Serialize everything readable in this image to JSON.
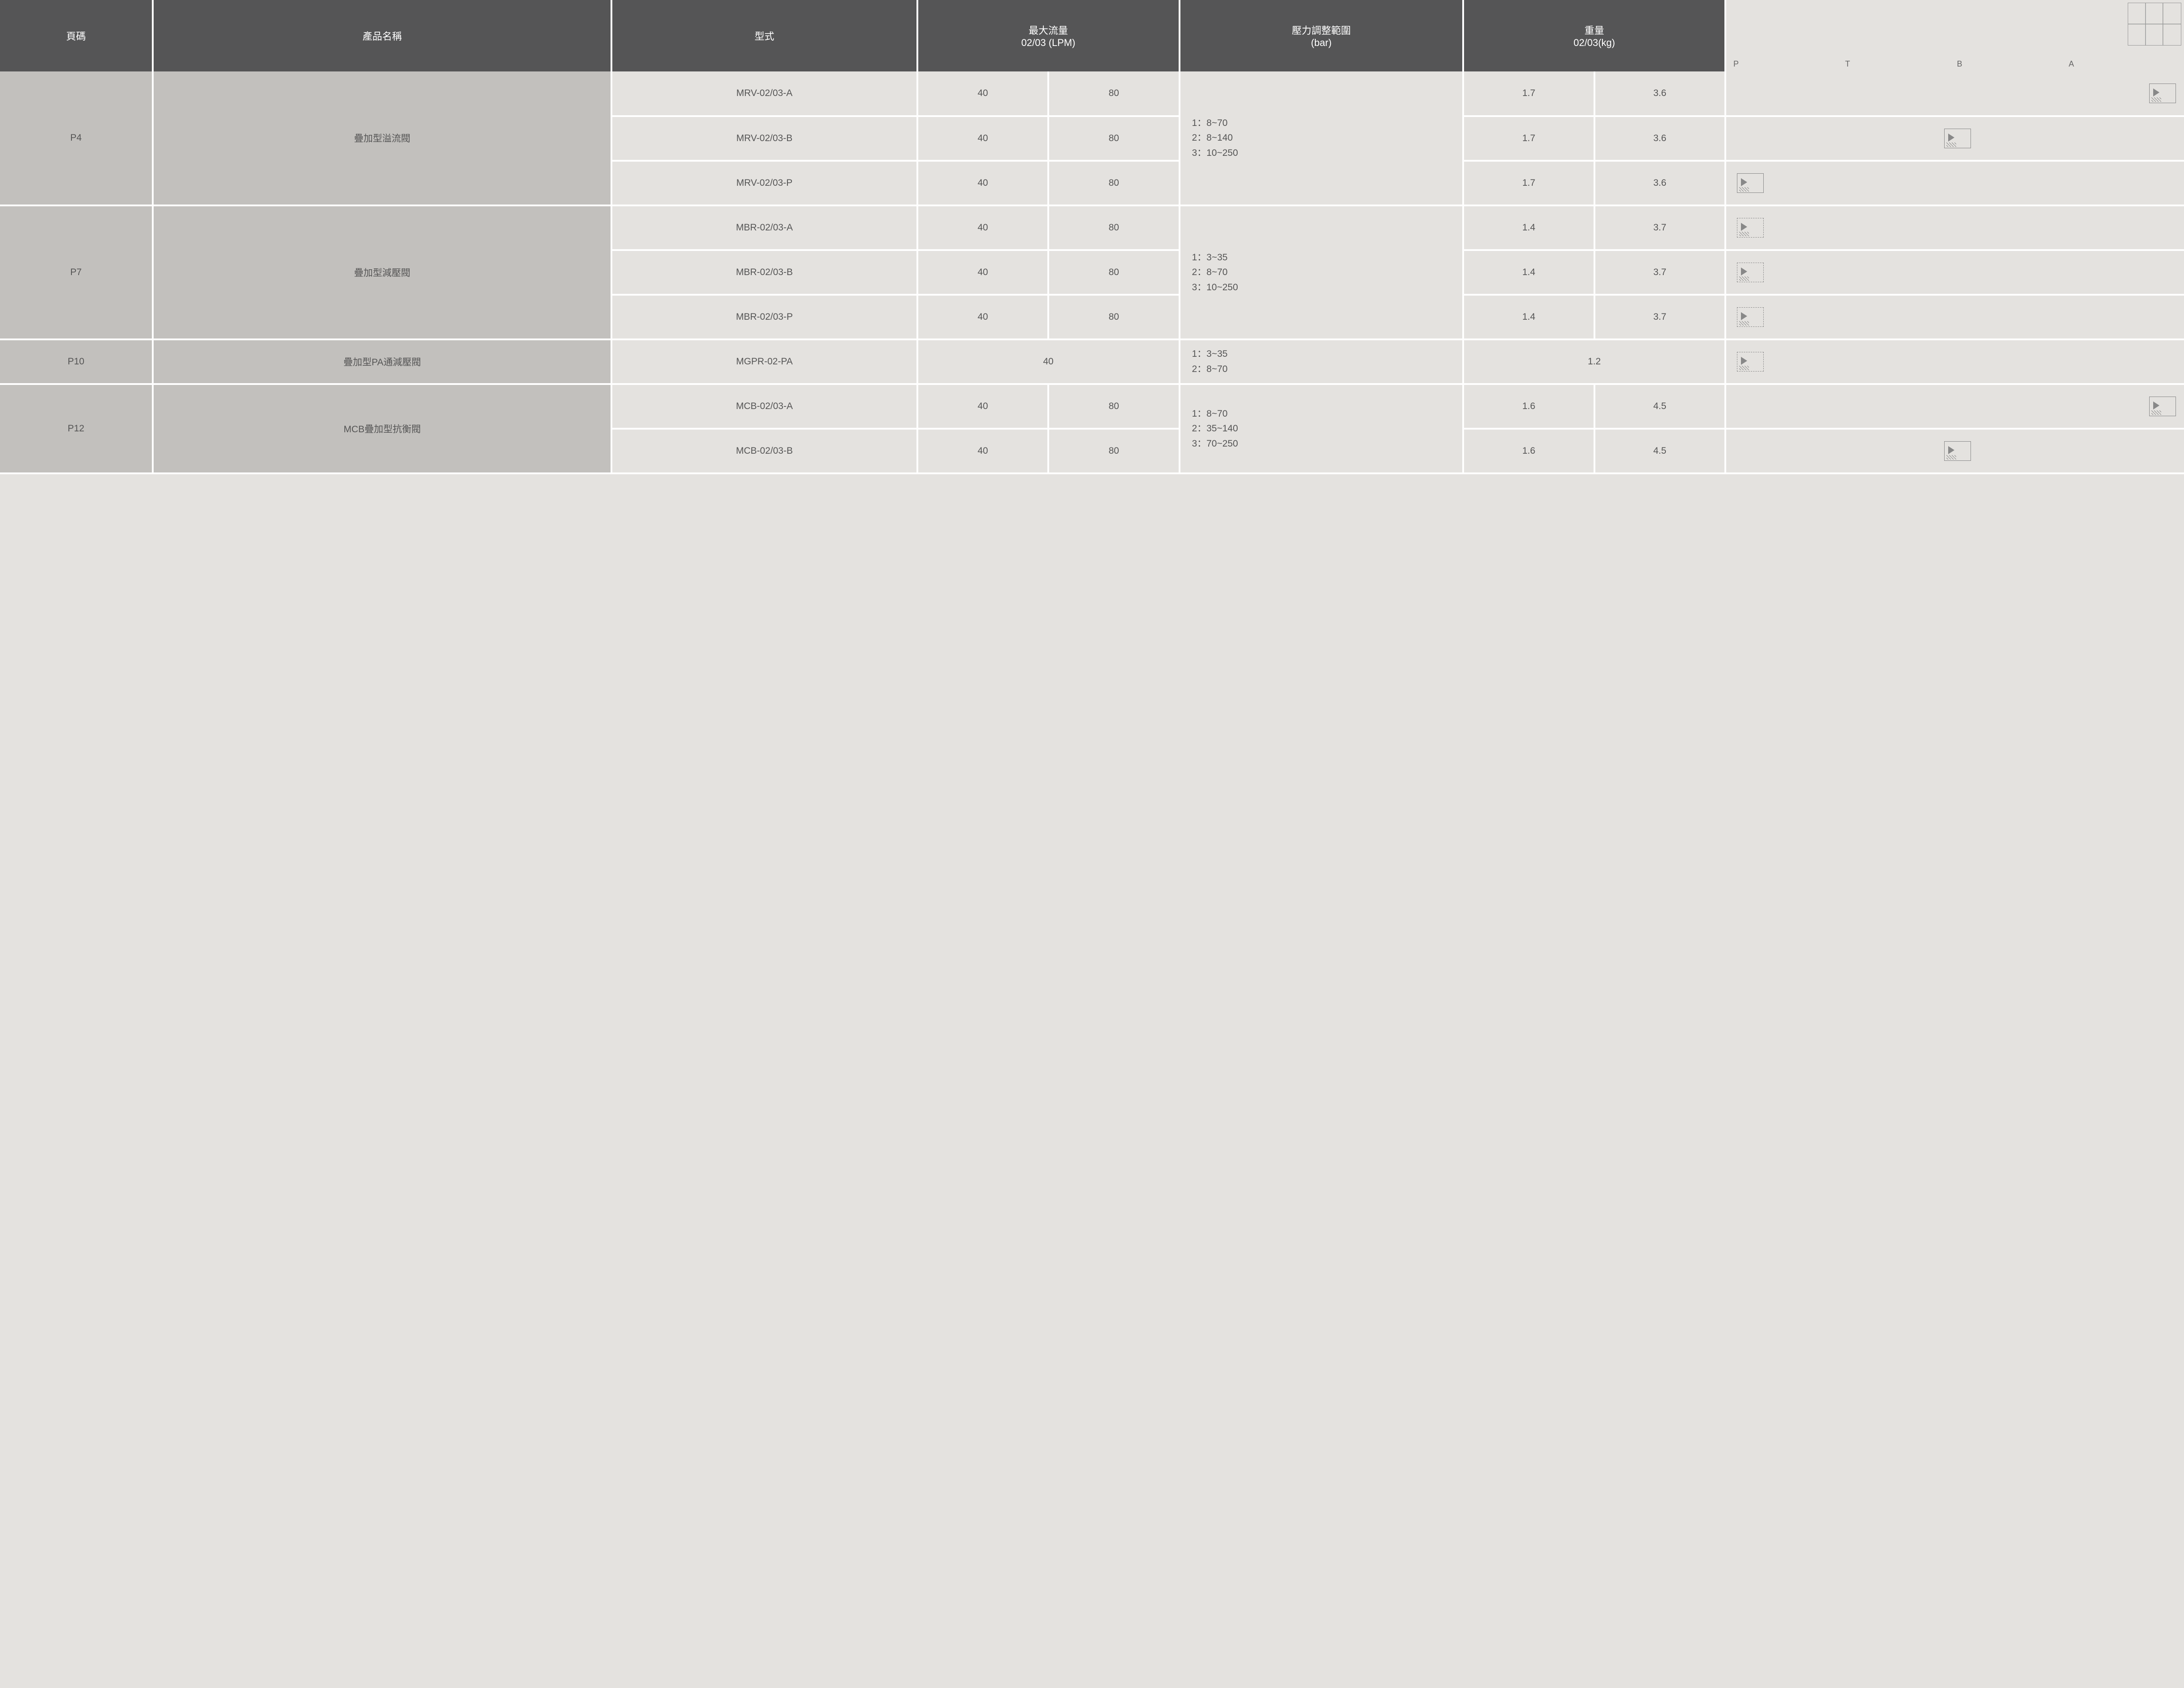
{
  "headers": {
    "page": "頁碼",
    "name": "產品名稱",
    "type": "型式",
    "flow_l1": "最大流量",
    "flow_l2": "02/03 (LPM)",
    "press_l1": "壓力調整範圍",
    "press_l2": "(bar)",
    "weight_l1": "重量",
    "weight_l2": "02/03(kg)"
  },
  "port_labels": [
    "P",
    "T",
    "B",
    "A"
  ],
  "groups": [
    {
      "page": "P4",
      "name": "疊加型溢流閥",
      "pressure": [
        "1：8~70",
        "2：8~140",
        "3：10~250"
      ],
      "rows": [
        {
          "model": "MRV-02/03-A",
          "f02": "40",
          "f03": "80",
          "w02": "1.7",
          "w03": "3.6",
          "sym_pos": "right"
        },
        {
          "model": "MRV-02/03-B",
          "f02": "40",
          "f03": "80",
          "w02": "1.7",
          "w03": "3.6",
          "sym_pos": "mid"
        },
        {
          "model": "MRV-02/03-P",
          "f02": "40",
          "f03": "80",
          "w02": "1.7",
          "w03": "3.6",
          "sym_pos": "left"
        }
      ]
    },
    {
      "page": "P7",
      "name": "疊加型減壓閥",
      "pressure": [
        "1：3~35",
        "2：8~70",
        "3：10~250"
      ],
      "rows": [
        {
          "model": "MBR-02/03-A",
          "f02": "40",
          "f03": "80",
          "w02": "1.4",
          "w03": "3.7",
          "sym_pos": "left",
          "dashed": true
        },
        {
          "model": "MBR-02/03-B",
          "f02": "40",
          "f03": "80",
          "w02": "1.4",
          "w03": "3.7",
          "sym_pos": "left",
          "dashed": true
        },
        {
          "model": "MBR-02/03-P",
          "f02": "40",
          "f03": "80",
          "w02": "1.4",
          "w03": "3.7",
          "sym_pos": "left",
          "dashed": true
        }
      ]
    },
    {
      "page": "P10",
      "name": "疊加型PA通減壓閥",
      "pressure": [
        "1：3~35",
        "2：8~70"
      ],
      "single": true,
      "rows": [
        {
          "model": "MGPR-02-PA",
          "f_merged": "40",
          "w_merged": "1.2",
          "sym_pos": "left",
          "dashed": true
        }
      ]
    },
    {
      "page": "P12",
      "name": "MCB疊加型抗衡閥",
      "pressure": [
        "1：8~70",
        "2：35~140",
        "3：70~250"
      ],
      "rows": [
        {
          "model": "MCB-02/03-A",
          "f02": "40",
          "f03": "80",
          "w02": "1.6",
          "w03": "4.5",
          "sym_pos": "right"
        },
        {
          "model": "MCB-02/03-B",
          "f02": "40",
          "f03": "80",
          "w02": "1.6",
          "w03": "4.5",
          "sym_pos": "mid"
        }
      ]
    }
  ],
  "colors": {
    "header_bg": "#555556",
    "row_header_bg": "#c2c0bd",
    "cell_bg": "#e4e2df",
    "border": "#ffffff",
    "text": "#555555"
  }
}
